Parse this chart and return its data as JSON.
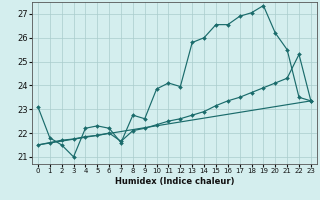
{
  "xlabel": "Humidex (Indice chaleur)",
  "xlim": [
    -0.5,
    23.5
  ],
  "ylim": [
    20.7,
    27.5
  ],
  "yticks": [
    21,
    22,
    23,
    24,
    25,
    26,
    27
  ],
  "xticks": [
    0,
    1,
    2,
    3,
    4,
    5,
    6,
    7,
    8,
    9,
    10,
    11,
    12,
    13,
    14,
    15,
    16,
    17,
    18,
    19,
    20,
    21,
    22,
    23
  ],
  "background_color": "#d4eeee",
  "grid_color": "#aacccc",
  "line_color": "#1a6b6b",
  "line1_x": [
    0,
    1,
    2,
    3,
    4,
    5,
    6,
    7,
    8,
    9,
    10,
    11,
    12,
    13,
    14,
    15,
    16,
    17,
    18,
    19,
    20,
    21,
    22,
    23
  ],
  "line1_y": [
    23.1,
    21.8,
    21.5,
    21.0,
    22.2,
    22.3,
    22.2,
    21.6,
    22.75,
    22.6,
    23.85,
    24.1,
    23.95,
    25.8,
    26.0,
    26.55,
    26.55,
    26.9,
    27.05,
    27.35,
    26.2,
    25.5,
    23.5,
    23.35
  ],
  "line2_x": [
    0,
    1,
    2,
    3,
    4,
    5,
    6,
    7,
    8,
    9,
    10,
    11,
    12,
    13,
    14,
    15,
    16,
    17,
    18,
    19,
    20,
    21,
    22,
    23
  ],
  "line2_y": [
    21.5,
    21.6,
    21.7,
    21.75,
    21.85,
    21.9,
    22.0,
    21.65,
    22.1,
    22.2,
    22.35,
    22.5,
    22.6,
    22.75,
    22.9,
    23.15,
    23.35,
    23.5,
    23.7,
    23.9,
    24.1,
    24.3,
    25.3,
    23.35
  ],
  "line3_x": [
    0,
    23
  ],
  "line3_y": [
    21.5,
    23.35
  ]
}
